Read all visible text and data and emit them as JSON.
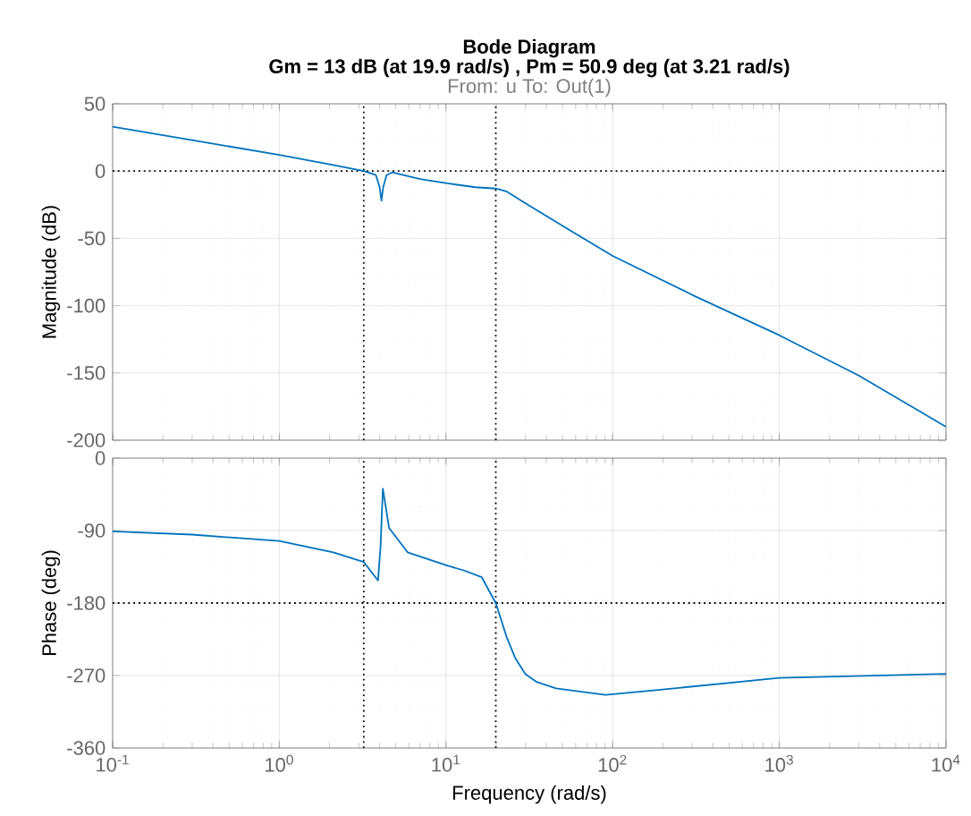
{
  "chart_data": [
    {
      "type": "line",
      "title": "Bode Diagram",
      "subtitle": "Gm = 13 dB (at 19.9 rad/s) ,  Pm = 50.9 deg (at 3.21 rad/s)",
      "annotations": [
        "From: u  To: Out(1)"
      ],
      "ylabel": "Magnitude (dB)",
      "log": "x",
      "grid": true,
      "tick_labels": "y",
      "xlim": [
        0.1,
        10000
      ],
      "ylim": [
        -200,
        50
      ],
      "xticks": [
        {
          "value": 0.1,
          "label": null
        },
        {
          "value": 1,
          "label": null
        },
        {
          "value": 10,
          "label": null
        },
        {
          "value": 100,
          "label": null
        },
        {
          "value": 1000,
          "label": null
        },
        {
          "value": 10000,
          "label": null
        }
      ],
      "yticks": [
        50,
        0,
        -50,
        -100,
        -150,
        -200
      ],
      "x": [
        0.1,
        0.3,
        1,
        2,
        3.21,
        3.8,
        4.0,
        4.1,
        4.2,
        4.4,
        4.76,
        7,
        10,
        15,
        19.9,
        23,
        30,
        46,
        100,
        300,
        1000,
        3000,
        10000
      ],
      "series": [
        {
          "color": "#0072bd",
          "values": [
            33,
            23,
            12,
            5,
            0,
            -3,
            -12,
            -22,
            -12,
            -3,
            -1,
            -6,
            -9,
            -12,
            -13,
            -15,
            -24,
            -38,
            -63,
            -92,
            -122,
            -152,
            -190
          ]
        }
      ],
      "ref_lines": [
        {
          "axis": "y",
          "value": 0,
          "line_style": "dotted",
          "color": "#000000"
        },
        {
          "axis": "x",
          "value": 3.21,
          "line_style": "dotted",
          "color": "#000000"
        },
        {
          "axis": "x",
          "value": 19.9,
          "line_style": "dotted",
          "color": "#000000"
        }
      ]
    },
    {
      "type": "line",
      "ylabel": "Phase (deg)",
      "xlabel": "Frequency  (rad/s)",
      "log": "x",
      "grid": true,
      "xlim": [
        0.1,
        10000
      ],
      "ylim": [
        -360,
        0
      ],
      "xticks": [
        {
          "value": 0.1,
          "label": "10$^{-1}$"
        },
        {
          "value": 1,
          "label": "10$^{0}$"
        },
        {
          "value": 10,
          "label": "10$^{1}$"
        },
        {
          "value": 100,
          "label": "10$^{2}$"
        },
        {
          "value": 1000,
          "label": "10$^{3}$"
        },
        {
          "value": 10000,
          "label": "10$^{4}$"
        }
      ],
      "yticks": [
        0,
        -90,
        -180,
        -270,
        -360
      ],
      "x": [
        0.1,
        0.3,
        1,
        2.11,
        3.21,
        3.91,
        4.05,
        4.18,
        4.56,
        5.89,
        10,
        13,
        16.4,
        19.9,
        23.1,
        26,
        29.9,
        35,
        45.8,
        90.6,
        165,
        1000,
        10000
      ],
      "series": [
        {
          "color": "#0072bd",
          "values": [
            -91,
            -95,
            -103,
            -117,
            -129,
            -152,
            -110,
            -38,
            -87,
            -117,
            -133,
            -140,
            -148,
            -180,
            -222,
            -248,
            -268,
            -278,
            -286,
            -294,
            -289,
            -273,
            -268
          ]
        }
      ],
      "ref_lines": [
        {
          "axis": "y",
          "value": -180,
          "line_style": "dotted",
          "color": "#000000"
        },
        {
          "axis": "x",
          "value": 3.21,
          "line_style": "dotted",
          "color": "#000000"
        },
        {
          "axis": "x",
          "value": 19.9,
          "line_style": "dotted",
          "color": "#000000"
        }
      ]
    }
  ]
}
